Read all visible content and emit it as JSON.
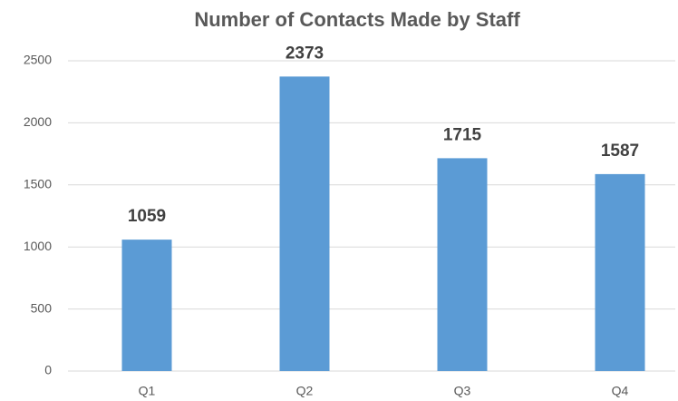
{
  "chart_data": {
    "type": "bar",
    "title": "Number of Contacts Made by Staff",
    "categories": [
      "Q1",
      "Q2",
      "Q3",
      "Q4"
    ],
    "values": [
      1059,
      2373,
      1715,
      1587
    ],
    "color": "#5b9bd5",
    "ylim": [
      0,
      2500
    ],
    "yticks": [
      0,
      500,
      1000,
      1500,
      2000,
      2500
    ],
    "grid": true
  }
}
